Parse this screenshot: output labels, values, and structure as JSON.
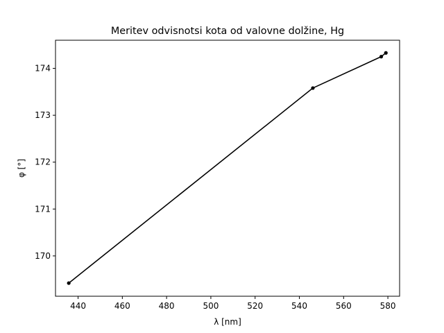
{
  "chart_data": {
    "type": "line",
    "title": "Meritev odvisnotsi kota od valovne dolžine, Hg",
    "xlabel": "λ [nm]",
    "ylabel": "φ [°]",
    "xlim": [
      429.8,
      585.3
    ],
    "ylim": [
      169.14,
      174.6
    ],
    "xticks": [
      440,
      460,
      480,
      500,
      520,
      540,
      560,
      580
    ],
    "yticks": [
      170,
      171,
      172,
      173,
      174
    ],
    "grid": false,
    "legend": false,
    "colors": {
      "line": "#000000",
      "marker": "#000000",
      "axes": "#000000",
      "background": "#ffffff"
    },
    "series": [
      {
        "x": [
          435.8,
          546.1,
          577.0,
          579.1
        ],
        "y": [
          169.42,
          173.58,
          174.25,
          174.33
        ]
      }
    ]
  }
}
